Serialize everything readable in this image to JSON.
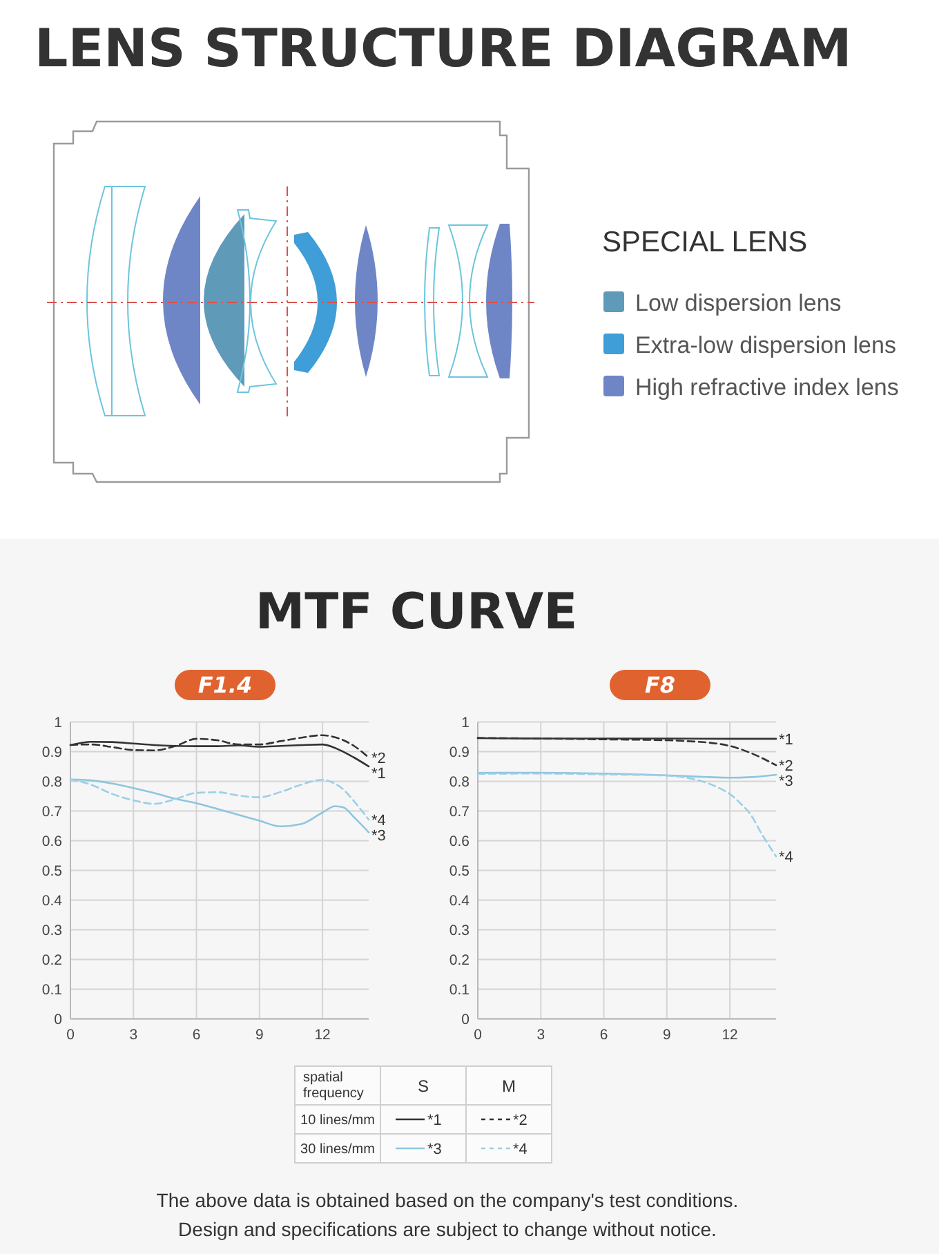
{
  "chart_data": [
    {
      "type": "other",
      "title": "LENS STRUCTURE DIAGRAM",
      "legend_title": "SPECIAL LENS",
      "categories": [
        "Low dispersion lens",
        "Extra-low dispersion lens",
        "High refractive index lens"
      ],
      "colors": [
        "#5f9ab9",
        "#3f9ed8",
        "#6f86c6"
      ]
    },
    {
      "type": "line",
      "title": "MTF CURVE",
      "subtitle": "F1.4",
      "xlim": [
        0,
        14.2
      ],
      "xticks": [
        0,
        3,
        6,
        9,
        12
      ],
      "ylim": [
        0,
        1
      ],
      "yticks": [
        0,
        0.1,
        0.2,
        0.3,
        0.4,
        0.5,
        0.6,
        0.7,
        0.8,
        0.9,
        1
      ],
      "grid": true,
      "legend": "bottom",
      "legend_title": "spatial frequency",
      "annotations": [
        "S",
        "M",
        "10 lines/mm",
        "30 lines/mm"
      ],
      "series": [
        {
          "name": "*1",
          "color": "#333333",
          "line_style": "solid",
          "x": [
            0,
            1,
            2,
            3,
            4,
            5,
            6,
            7,
            8,
            9,
            10,
            11,
            12,
            12.5,
            13,
            13.5,
            14.2
          ],
          "values": [
            0.922,
            0.933,
            0.932,
            0.927,
            0.922,
            0.919,
            0.918,
            0.918,
            0.921,
            0.916,
            0.919,
            0.922,
            0.924,
            0.915,
            0.899,
            0.88,
            0.85
          ]
        },
        {
          "name": "*2",
          "color": "#333333",
          "line_style": "dashed",
          "x": [
            0,
            1,
            2,
            3,
            4,
            5,
            6,
            7,
            8,
            9,
            10,
            11,
            12,
            12.5,
            13,
            13.5,
            14.2
          ],
          "values": [
            0.922,
            0.924,
            0.915,
            0.905,
            0.904,
            0.919,
            0.943,
            0.938,
            0.924,
            0.924,
            0.935,
            0.947,
            0.955,
            0.95,
            0.938,
            0.919,
            0.88
          ]
        },
        {
          "name": "*3",
          "color": "#8ec5df",
          "line_style": "solid",
          "x": [
            0,
            1,
            2,
            3,
            4,
            5,
            6,
            7,
            8,
            9,
            10,
            11,
            12,
            12.6,
            13,
            13.5,
            14.2
          ],
          "values": [
            0.806,
            0.803,
            0.792,
            0.777,
            0.76,
            0.741,
            0.726,
            0.707,
            0.687,
            0.667,
            0.648,
            0.656,
            0.695,
            0.716,
            0.712,
            0.679,
            0.628
          ]
        },
        {
          "name": "*4",
          "color": "#9ccfe6",
          "line_style": "dashed",
          "x": [
            0,
            1,
            2,
            3,
            4,
            5,
            6,
            7,
            8,
            9,
            10,
            11,
            12,
            12.5,
            13,
            13.5,
            14.2
          ],
          "values": [
            0.806,
            0.788,
            0.757,
            0.736,
            0.724,
            0.74,
            0.761,
            0.763,
            0.752,
            0.746,
            0.764,
            0.789,
            0.805,
            0.795,
            0.772,
            0.733,
            0.671
          ]
        }
      ]
    },
    {
      "type": "line",
      "subtitle": "F8",
      "xlim": [
        0,
        14.2
      ],
      "xticks": [
        0,
        3,
        6,
        9,
        12
      ],
      "ylim": [
        0,
        1
      ],
      "yticks": [
        0,
        0.1,
        0.2,
        0.3,
        0.4,
        0.5,
        0.6,
        0.7,
        0.8,
        0.9,
        1
      ],
      "grid": true,
      "annotations": [
        "The above data is obtained based on the company's test conditions.",
        "Design and specifications are subject to change without notice."
      ],
      "series": [
        {
          "name": "*1",
          "color": "#333333",
          "line_style": "solid",
          "x": [
            0,
            3,
            6,
            9,
            12,
            14.2
          ],
          "values": [
            0.945,
            0.944,
            0.944,
            0.944,
            0.943,
            0.943
          ]
        },
        {
          "name": "*2",
          "color": "#333333",
          "line_style": "dashed",
          "x": [
            0,
            3,
            6,
            9,
            10,
            11,
            12,
            13,
            14.2
          ],
          "values": [
            0.946,
            0.944,
            0.941,
            0.938,
            0.935,
            0.93,
            0.919,
            0.895,
            0.854
          ]
        },
        {
          "name": "*3",
          "color": "#8ec5df",
          "line_style": "solid",
          "x": [
            0,
            3,
            6,
            9,
            10,
            11,
            12,
            13,
            14.2
          ],
          "values": [
            0.828,
            0.829,
            0.826,
            0.82,
            0.817,
            0.814,
            0.812,
            0.814,
            0.822
          ]
        },
        {
          "name": "*4",
          "color": "#9ccfe6",
          "line_style": "dashed",
          "x": [
            0,
            3,
            6,
            9,
            10,
            11,
            11.5,
            12,
            12.5,
            13,
            13.5,
            14.2
          ],
          "values": [
            0.825,
            0.826,
            0.823,
            0.819,
            0.811,
            0.792,
            0.777,
            0.757,
            0.726,
            0.687,
            0.625,
            0.547
          ]
        }
      ]
    }
  ]
}
